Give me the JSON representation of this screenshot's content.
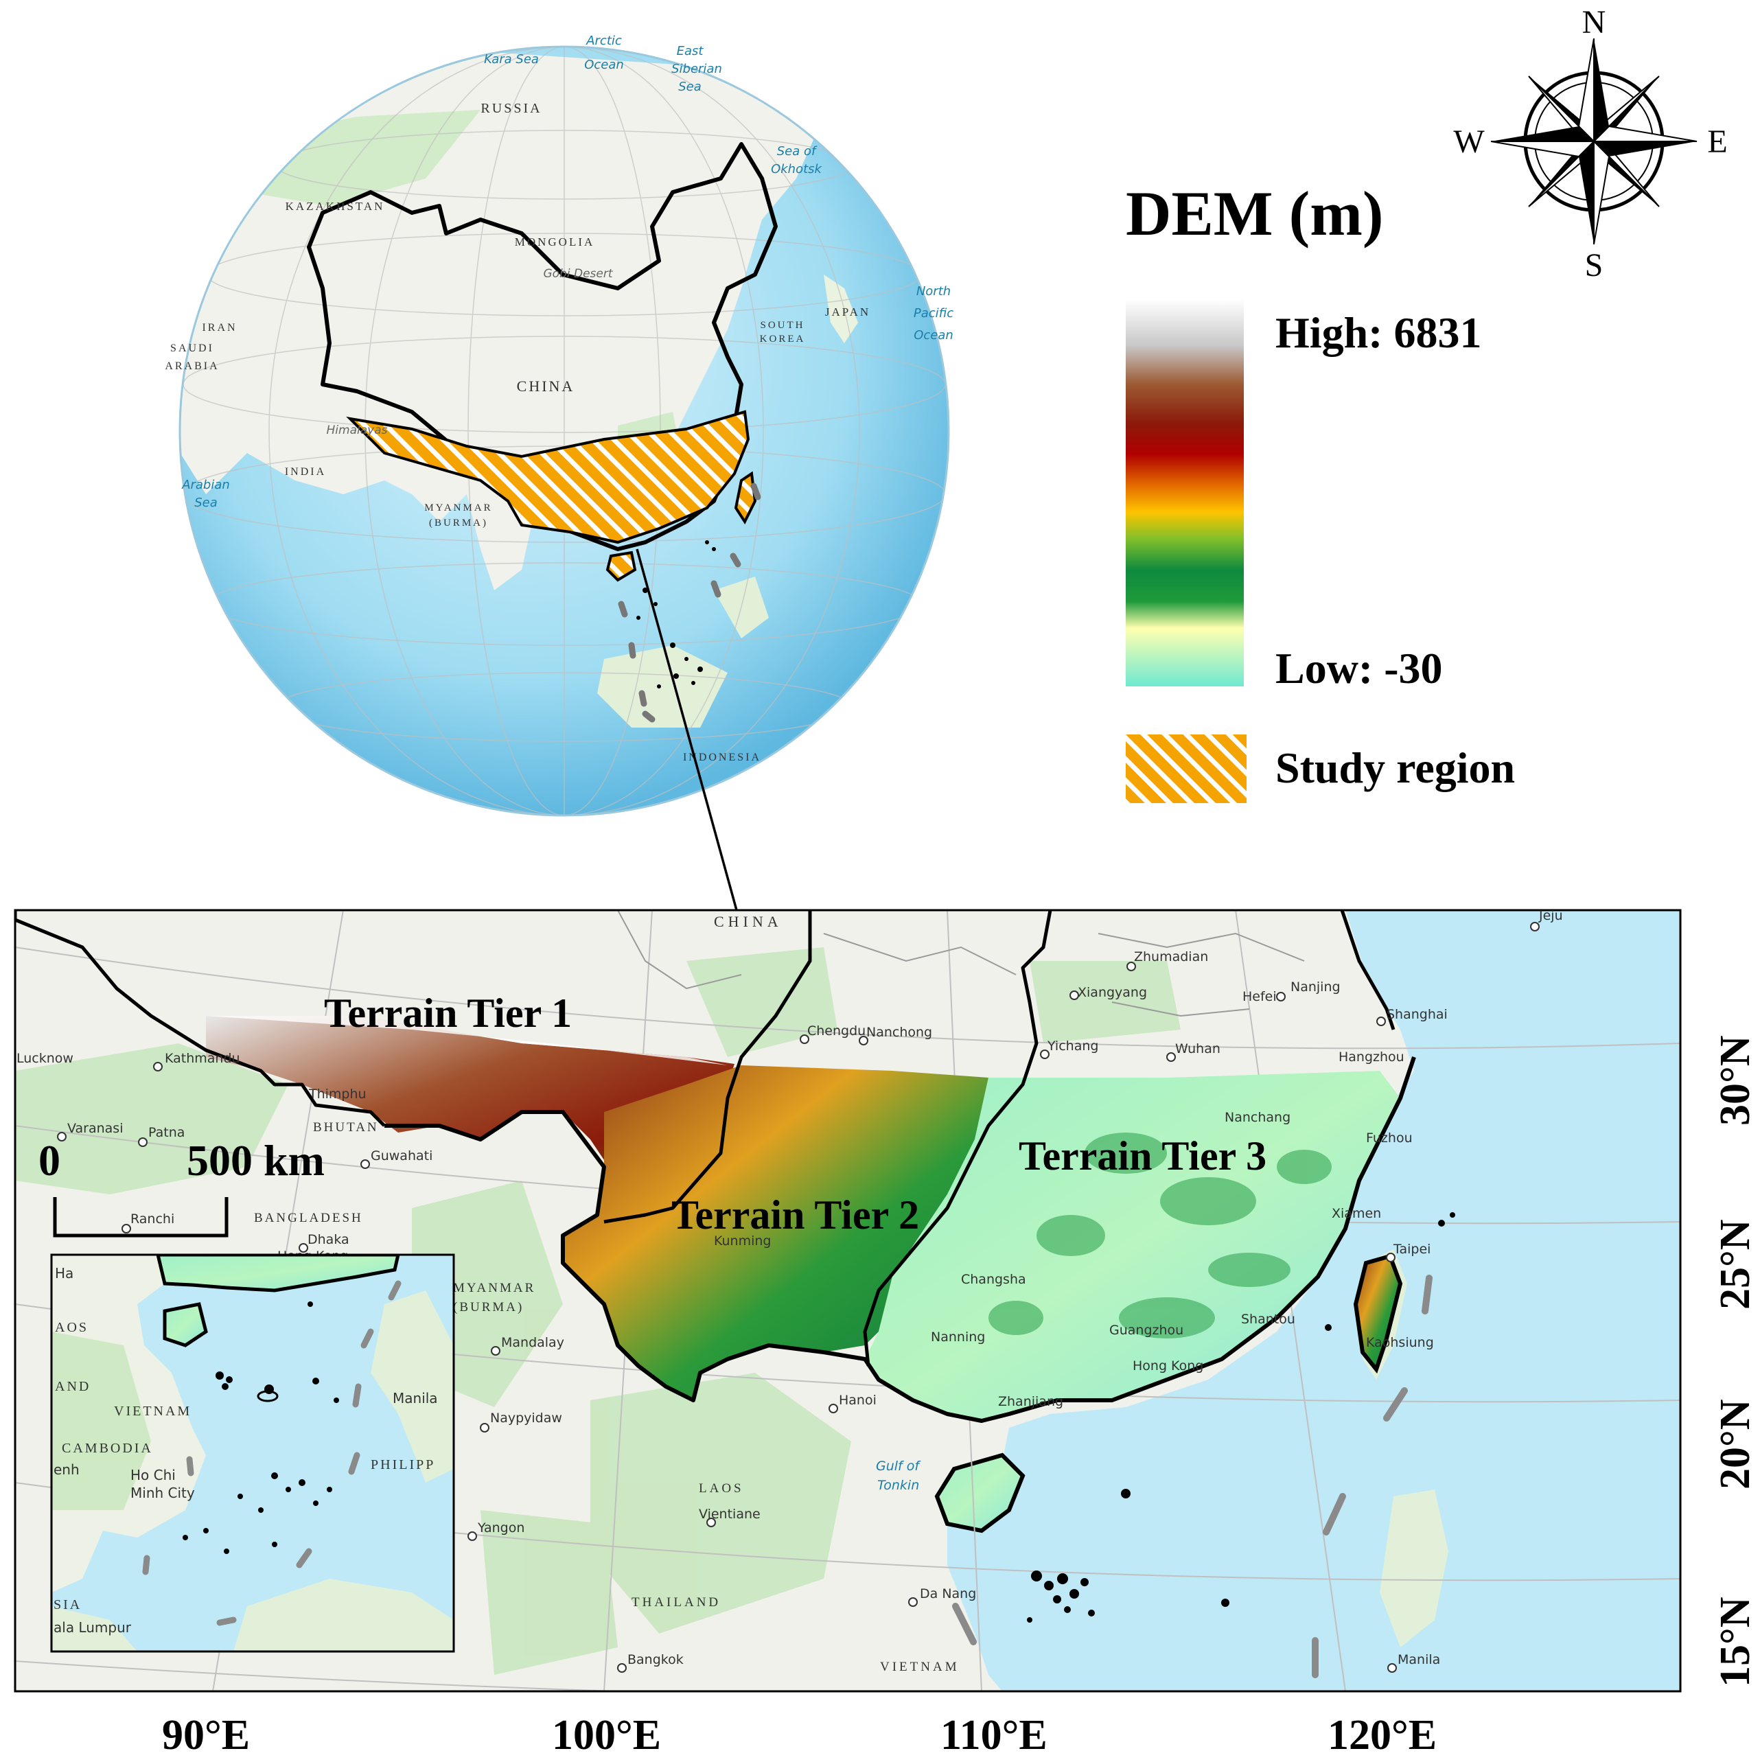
{
  "globe": {
    "labels": {
      "arctic_ocean_1": "Arctic",
      "arctic_ocean_2": "Ocean",
      "kara_sea": "Kara Sea",
      "east_siberian_1": "East",
      "east_siberian_2": "Siberian",
      "east_siberian_3": "Sea",
      "russia": "RUSSIA",
      "sea_of_okhotsk_1": "Sea of",
      "sea_of_okhotsk_2": "Okhotsk",
      "kazakhstan": "KAZAKHSTAN",
      "mongolia": "MONGOLIA",
      "gobi": "Gobi Desert",
      "north_pacific_1": "North",
      "north_pacific_2": "Pacific",
      "north_pacific_3": "Ocean",
      "japan": "JAPAN",
      "south_korea_1": "SOUTH",
      "south_korea_2": "KOREA",
      "iran": "IRAN",
      "saudi_1": "SAUDI",
      "saudi_2": "ARABIA",
      "china": "CHINA",
      "himalayas": "Himalayas",
      "india": "INDIA",
      "arabian_sea_1": "Arabian",
      "arabian_sea_2": "Sea",
      "myanmar_1": "MYANMAR",
      "myanmar_2": "(BURMA)",
      "indonesia": "INDONESIA"
    }
  },
  "legend": {
    "title": "DEM (m)",
    "high": "High: 6831",
    "low": "Low: -30",
    "study_region": "Study region",
    "colors": [
      "#ffffff",
      "#c8c8c8",
      "#9c5a32",
      "#8b1a0a",
      "#a00000",
      "#e46a00",
      "#ffc400",
      "#7fbf2a",
      "#1f9a3a",
      "#0e7a3e",
      "#ffffb0",
      "#6fe8d0"
    ],
    "hatch_color": "#f5a300"
  },
  "compass": {
    "n": "N",
    "s": "S",
    "e": "E",
    "w": "W"
  },
  "main_map": {
    "tiers": {
      "tier1": "Terrain Tier 1",
      "tier2": "Terrain Tier 2",
      "tier3": "Terrain Tier 3"
    },
    "scale": {
      "zero": "0",
      "distance": "500 km"
    },
    "places": {
      "china": "CHINA",
      "zhumadian": "Zhumadian",
      "xiangyang": "Xiangyang",
      "hefei": "Hefei",
      "nanjing": "Nanjing",
      "shanghai": "Shanghai",
      "jeju": "Jeju",
      "chengdu": "Chengdu",
      "nanchong": "Nanchong",
      "yichang": "Yichang",
      "wuhan": "Wuhan",
      "hangzhou": "Hangzhou",
      "lucknow": "Lucknow",
      "kathmandu": "Kathmandu",
      "thimphu": "Thimphu",
      "bhutan": "BHUTAN",
      "varanasi": "Varanasi",
      "patna": "Patna",
      "guwahati": "Guwahati",
      "ranchi": "Ranchi",
      "bangladesh": "BANGLADESH",
      "dhaka": "Dhaka",
      "hong_kong": "Hong Kong",
      "myanmar_1": "MYANMAR",
      "myanmar_2": "(BURMA)",
      "mandalay": "Mandalay",
      "naypyidaw": "Naypyidaw",
      "hanoi": "Hanoi",
      "gulf_1": "Gulf of",
      "gulf_2": "Tonkin",
      "zhanjiang": "Zhanjiang",
      "nanning": "Nanning",
      "guangzhou": "Guangzhou",
      "shantou": "Shantou",
      "kunming": "Kunming",
      "nanchang": "Nanchang",
      "changsha": "Changsha",
      "fuzhou": "Fuzhou",
      "xiamen": "Xiamen",
      "taipei": "Taipei",
      "kaohsiung": "Kaohsiung",
      "laos": "LAOS",
      "vientiane": "Vientiane",
      "yangon": "Yangon",
      "thailand": "THAILAND",
      "da_nang": "Da Nang",
      "bangkok": "Bangkok",
      "vietnam": "VIETNAM",
      "manila": "Manila"
    },
    "lat_labels": [
      "30°N",
      "25°N",
      "20°N",
      "15°N"
    ],
    "lon_labels": [
      "90°E",
      "100°E",
      "110°E",
      "120°E"
    ]
  },
  "inset": {
    "places": {
      "ha": "Ha",
      "vietnam": "VIETNAM",
      "cambodia": "CAMBODIA",
      "laos": "AOS",
      "land": "AND",
      "ho_chi_1": "Ho Chi",
      "ho_chi_2": "Minh City",
      "phnom": "enh",
      "manila": "Manila",
      "philipp": "PHILIPP",
      "sia": "SIA",
      "kl": "ala Lumpur"
    }
  }
}
